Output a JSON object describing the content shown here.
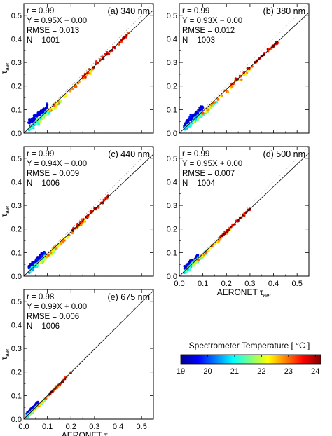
{
  "figure": {
    "colorbar": {
      "title": "Spectrometer Temperature [ °C ]",
      "ticks": [
        "19",
        "20",
        "21",
        "22",
        "23",
        "24"
      ],
      "range": [
        19,
        24.2
      ],
      "colors": [
        "#00008f",
        "#0000ff",
        "#0080ff",
        "#00ffff",
        "#80ff80",
        "#ffff00",
        "#ff8000",
        "#ff0000",
        "#800000"
      ]
    }
  },
  "chart_data": [
    {
      "type": "scatter",
      "panel": "(a) 340 nm",
      "stats": [
        "r = 0.99",
        "Y = 0.95X − 0.00",
        "RMSE = 0.013",
        "N = 1001"
      ],
      "ylabel": "τaer",
      "xlabel": "",
      "xlim": [
        0,
        0.55
      ],
      "ylim": [
        0,
        0.55
      ],
      "xticks": [],
      "yticks": [
        "0.0",
        "0.1",
        "0.2",
        "0.3",
        "0.4",
        "0.5"
      ],
      "fit": {
        "slope": 0.95,
        "intercept": 0.0
      },
      "cluster": [
        {
          "x": [
            0.02,
            0.1
          ],
          "spread": 0.02,
          "dy": 0.02,
          "n": 70,
          "t": [
            19.1,
            19.9
          ]
        },
        {
          "x": [
            0.02,
            0.1
          ],
          "spread": 0.015,
          "dy": -0.005,
          "n": 55,
          "t": [
            20.4,
            21.6
          ]
        },
        {
          "x": [
            0.06,
            0.16
          ],
          "spread": 0.015,
          "dy": -0.012,
          "n": 35,
          "t": [
            21.0,
            22.3
          ]
        },
        {
          "x": [
            0.1,
            0.3
          ],
          "spread": 0.012,
          "dy": -0.008,
          "n": 40,
          "t": [
            22.0,
            23.2
          ]
        },
        {
          "x": [
            0.25,
            0.45
          ],
          "spread": 0.013,
          "dy": 0.0,
          "n": 45,
          "t": [
            23.0,
            24.2
          ]
        }
      ]
    },
    {
      "type": "scatter",
      "panel": "(b) 380 nm",
      "stats": [
        "r = 0.99",
        "Y = 0.93X − 0.00",
        "RMSE = 0.012",
        "N = 1003"
      ],
      "ylabel": "",
      "xlabel": "",
      "xlim": [
        0,
        0.55
      ],
      "ylim": [
        0,
        0.55
      ],
      "xticks": [],
      "yticks": [
        "0.0",
        "0.1",
        "0.2",
        "0.3",
        "0.4",
        "0.5"
      ],
      "fit": {
        "slope": 0.93,
        "intercept": 0.0
      },
      "cluster": [
        {
          "x": [
            0.02,
            0.1
          ],
          "spread": 0.018,
          "dy": 0.018,
          "n": 65,
          "t": [
            19.1,
            19.9
          ]
        },
        {
          "x": [
            0.02,
            0.1
          ],
          "spread": 0.014,
          "dy": -0.005,
          "n": 55,
          "t": [
            20.4,
            21.6
          ]
        },
        {
          "x": [
            0.06,
            0.16
          ],
          "spread": 0.014,
          "dy": -0.012,
          "n": 35,
          "t": [
            21.0,
            22.3
          ]
        },
        {
          "x": [
            0.1,
            0.3
          ],
          "spread": 0.012,
          "dy": -0.008,
          "n": 40,
          "t": [
            22.0,
            23.2
          ]
        },
        {
          "x": [
            0.22,
            0.42
          ],
          "spread": 0.012,
          "dy": 0.0,
          "n": 42,
          "t": [
            23.0,
            24.2
          ]
        }
      ]
    },
    {
      "type": "scatter",
      "panel": "(c) 440 nm",
      "stats": [
        "r = 0.99",
        "Y = 0.94X − 0.00",
        "RMSE = 0.009",
        "N = 1006"
      ],
      "ylabel": "τaer",
      "xlabel": "",
      "xlim": [
        0,
        0.55
      ],
      "ylim": [
        0,
        0.55
      ],
      "xticks": [],
      "yticks": [
        "0.0",
        "0.1",
        "0.2",
        "0.3",
        "0.4",
        "0.5"
      ],
      "fit": {
        "slope": 0.94,
        "intercept": 0.0
      },
      "cluster": [
        {
          "x": [
            0.02,
            0.09
          ],
          "spread": 0.015,
          "dy": 0.015,
          "n": 60,
          "t": [
            19.1,
            19.9
          ]
        },
        {
          "x": [
            0.02,
            0.09
          ],
          "spread": 0.012,
          "dy": -0.004,
          "n": 55,
          "t": [
            20.4,
            21.6
          ]
        },
        {
          "x": [
            0.05,
            0.14
          ],
          "spread": 0.012,
          "dy": -0.01,
          "n": 35,
          "t": [
            21.0,
            22.3
          ]
        },
        {
          "x": [
            0.09,
            0.26
          ],
          "spread": 0.01,
          "dy": -0.006,
          "n": 38,
          "t": [
            22.0,
            23.2
          ]
        },
        {
          "x": [
            0.2,
            0.36
          ],
          "spread": 0.01,
          "dy": 0.0,
          "n": 40,
          "t": [
            23.0,
            24.2
          ]
        }
      ]
    },
    {
      "type": "scatter",
      "panel": "(d) 500 nm",
      "stats": [
        "r = 0.99",
        "Y = 0.95X + 0.00",
        "RMSE = 0.007",
        "N = 1004"
      ],
      "ylabel": "",
      "xlabel": "AERONET τaer",
      "xlim": [
        0,
        0.55
      ],
      "ylim": [
        0,
        0.55
      ],
      "xticks": [
        "0.0",
        "0.1",
        "0.2",
        "0.3",
        "0.4",
        "0.5"
      ],
      "yticks": [
        "0.0",
        "0.1",
        "0.2",
        "0.3",
        "0.4",
        "0.5"
      ],
      "fit": {
        "slope": 0.95,
        "intercept": 0.0
      },
      "cluster": [
        {
          "x": [
            0.02,
            0.08
          ],
          "spread": 0.012,
          "dy": 0.012,
          "n": 55,
          "t": [
            19.1,
            19.9
          ]
        },
        {
          "x": [
            0.02,
            0.08
          ],
          "spread": 0.01,
          "dy": -0.003,
          "n": 55,
          "t": [
            20.4,
            21.6
          ]
        },
        {
          "x": [
            0.04,
            0.12
          ],
          "spread": 0.01,
          "dy": -0.008,
          "n": 35,
          "t": [
            21.0,
            22.3
          ]
        },
        {
          "x": [
            0.08,
            0.22
          ],
          "spread": 0.009,
          "dy": -0.005,
          "n": 36,
          "t": [
            22.0,
            23.2
          ]
        },
        {
          "x": [
            0.17,
            0.3
          ],
          "spread": 0.009,
          "dy": 0.0,
          "n": 38,
          "t": [
            23.0,
            24.2
          ]
        }
      ]
    },
    {
      "type": "scatter",
      "panel": "(e) 675 nm",
      "stats": [
        "r = 0.98",
        "Y = 0.99X + 0.00",
        "RMSE = 0.006",
        "N = 1006"
      ],
      "ylabel": "τaer",
      "xlabel": "AERONET τaer",
      "xlim": [
        0,
        0.55
      ],
      "ylim": [
        0,
        0.55
      ],
      "xticks": [
        "0.0",
        "0.1",
        "0.2",
        "0.3",
        "0.4",
        "0.5"
      ],
      "yticks": [
        "0.0",
        "0.1",
        "0.2",
        "0.3",
        "0.4",
        "0.5"
      ],
      "fit": {
        "slope": 0.99,
        "intercept": 0.0
      },
      "cluster": [
        {
          "x": [
            0.01,
            0.06
          ],
          "spread": 0.01,
          "dy": 0.01,
          "n": 45,
          "t": [
            19.1,
            19.9
          ]
        },
        {
          "x": [
            0.01,
            0.06
          ],
          "spread": 0.008,
          "dy": -0.002,
          "n": 50,
          "t": [
            20.4,
            21.6
          ]
        },
        {
          "x": [
            0.03,
            0.09
          ],
          "spread": 0.008,
          "dy": -0.006,
          "n": 30,
          "t": [
            21.0,
            22.3
          ]
        },
        {
          "x": [
            0.06,
            0.16
          ],
          "spread": 0.008,
          "dy": -0.004,
          "n": 30,
          "t": [
            22.0,
            23.2
          ]
        },
        {
          "x": [
            0.1,
            0.2
          ],
          "spread": 0.008,
          "dy": 0.0,
          "n": 30,
          "t": [
            23.0,
            24.2
          ]
        }
      ]
    }
  ]
}
